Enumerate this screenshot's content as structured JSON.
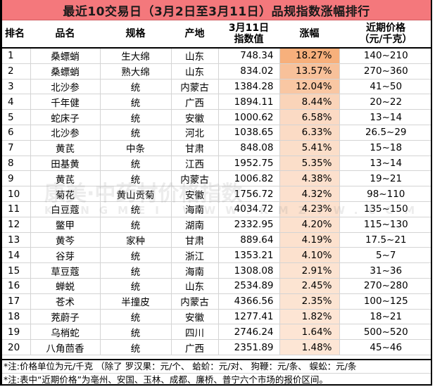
{
  "title": "最近10交易日（3月2日至3月11日）品规指数涨幅排行",
  "headers": {
    "rank": "排名",
    "name": "品名",
    "spec": "规格",
    "origin": "产地",
    "index_line1": "3月11日",
    "index_line2": "指数值",
    "change": "涨幅",
    "price_line1": "近期价格",
    "price_line2": "（元/千克）"
  },
  "colors": {
    "title_bg": "#f4787c",
    "change_max": "#f6b27e",
    "change_min": "#fce4d2"
  },
  "rows": [
    {
      "rank": "1",
      "name": "桑螵蛸",
      "spec": "生大绵",
      "origin": "山东",
      "index": "748.34",
      "change": "18.27%",
      "price": "140~210",
      "bg": "#f7b07c"
    },
    {
      "rank": "2",
      "name": "桑螵蛸",
      "spec": "熟大绵",
      "origin": "山东",
      "index": "834.02",
      "change": "13.57%",
      "price": "270~360",
      "bg": "#f8c19a"
    },
    {
      "rank": "3",
      "name": "北沙参",
      "spec": "统",
      "origin": "内蒙古",
      "index": "1384.28",
      "change": "12.04%",
      "price": "41~50",
      "bg": "#f9c7a3"
    },
    {
      "rank": "4",
      "name": "千年健",
      "spec": "统",
      "origin": "广西",
      "index": "1894.11",
      "change": "8.44%",
      "price": "20~22",
      "bg": "#fad4b9"
    },
    {
      "rank": "5",
      "name": "蛇床子",
      "spec": "统",
      "origin": "安徽",
      "index": "1000.62",
      "change": "6.58%",
      "price": "13~14",
      "bg": "#fbdac4"
    },
    {
      "rank": "6",
      "name": "北沙参",
      "spec": "统",
      "origin": "河北",
      "index": "1038.65",
      "change": "6.33%",
      "price": "26.5~29",
      "bg": "#fbdbc5"
    },
    {
      "rank": "7",
      "name": "黄芪",
      "spec": "中条",
      "origin": "甘肃",
      "index": "848.08",
      "change": "5.41%",
      "price": "15~18",
      "bg": "#fbdec9"
    },
    {
      "rank": "8",
      "name": "田基黄",
      "spec": "统",
      "origin": "江西",
      "index": "1952.75",
      "change": "5.35%",
      "price": "13~14",
      "bg": "#fbdec9"
    },
    {
      "rank": "9",
      "name": "黄芪",
      "spec": "统",
      "origin": "内蒙古",
      "index": "1006.82",
      "change": "4.38%",
      "price": "19~21",
      "bg": "#fce0cd"
    },
    {
      "rank": "10",
      "name": "菊花",
      "spec": "黄山贡菊",
      "origin": "安徽",
      "index": "1756.72",
      "change": "4.32%",
      "price": "98~110",
      "bg": "#fce0cd"
    },
    {
      "rank": "11",
      "name": "白豆蔻",
      "spec": "统",
      "origin": "海南",
      "index": "4034.72",
      "change": "4.23%",
      "price": "135~150",
      "bg": "#fce1ce"
    },
    {
      "rank": "12",
      "name": "鳖甲",
      "spec": "统",
      "origin": "湖南",
      "index": "2332.95",
      "change": "4.20%",
      "price": "115~130",
      "bg": "#fce1ce"
    },
    {
      "rank": "13",
      "name": "黄芩",
      "spec": "家种",
      "origin": "甘肃",
      "index": "889.64",
      "change": "4.19%",
      "price": "17.5~21",
      "bg": "#fce1ce"
    },
    {
      "rank": "14",
      "name": "谷芽",
      "spec": "统",
      "origin": "浙江",
      "index": "1353.21",
      "change": "4.10%",
      "price": "5~7",
      "bg": "#fce1ce"
    },
    {
      "rank": "15",
      "name": "草豆蔻",
      "spec": "统",
      "origin": "海南",
      "index": "1308.08",
      "change": "2.91%",
      "price": "31~36",
      "bg": "#fce3d1"
    },
    {
      "rank": "16",
      "name": "蝉蜕",
      "spec": "统",
      "origin": "山东",
      "index": "2534.89",
      "change": "2.45%",
      "price": "270~280",
      "bg": "#fce4d2"
    },
    {
      "rank": "17",
      "name": "苍术",
      "spec": "半撞皮",
      "origin": "内蒙古",
      "index": "4366.56",
      "change": "2.35%",
      "price": "100~125",
      "bg": "#fce4d2"
    },
    {
      "rank": "18",
      "name": "茺蔚子",
      "spec": "统",
      "origin": "安徽",
      "index": "1277.41",
      "change": "1.82%",
      "price": "18~21",
      "bg": "#fde5d4"
    },
    {
      "rank": "19",
      "name": "乌梢蛇",
      "spec": "统",
      "origin": "四川",
      "index": "2746.24",
      "change": "1.64%",
      "price": "500~520",
      "bg": "#fde5d4"
    },
    {
      "rank": "20",
      "name": "八角茴香",
      "spec": "统",
      "origin": "广西",
      "index": "2351.89",
      "change": "1.48%",
      "price": "45~46",
      "bg": "#fde6d5"
    }
  ],
  "notes": [
    "*注:价格单位为元/千克 （除了  罗汉果：元/个、  蛤蚧：元/对、  狗鞭：元/条、  蜈蚣：元/条",
    "*注:表中“近期价格”为亳州、安国、玉林、成都、廉桥、普宁六个市场的报价区间。"
  ],
  "watermark": {
    "line1": "康美·中药材价格指数",
    "line2": "KANGMEI WWW.KMZYW.COM"
  }
}
